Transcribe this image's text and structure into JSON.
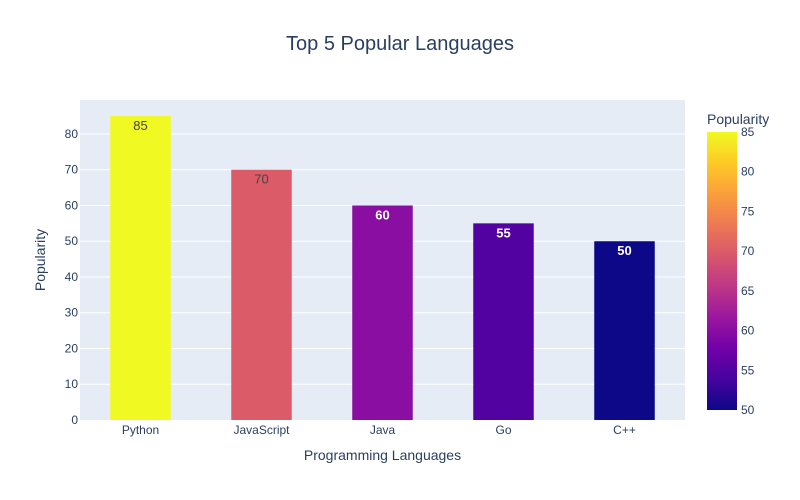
{
  "chart_data": {
    "type": "bar",
    "title": "Top 5 Popular Languages",
    "xlabel": "Programming Languages",
    "ylabel": "Popularity",
    "categories": [
      "Python",
      "JavaScript",
      "Java",
      "Go",
      "C++"
    ],
    "values": [
      85,
      70,
      60,
      55,
      50
    ],
    "ylim": [
      0,
      89.5
    ],
    "yticks": [
      0,
      10,
      20,
      30,
      40,
      50,
      60,
      70,
      80
    ],
    "grid": true,
    "colorbar": {
      "title": "Popularity",
      "range": [
        50,
        85
      ],
      "ticks": [
        50,
        55,
        60,
        65,
        70,
        75,
        80,
        85
      ],
      "colorscale": [
        "#0d0887",
        "#46039f",
        "#7201a8",
        "#9c179e",
        "#bd3786",
        "#d8576b",
        "#ed7953",
        "#fb9f3a",
        "#fdca26",
        "#f0f921"
      ]
    },
    "plot_background": "#e5ecf6"
  }
}
